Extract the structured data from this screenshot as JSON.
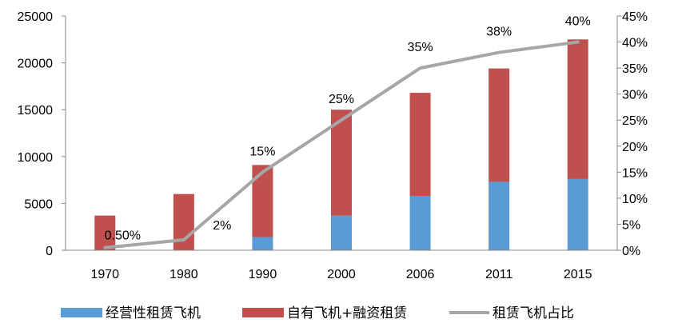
{
  "chart_data": {
    "type": "bar",
    "stacked": true,
    "categories": [
      "1970",
      "1980",
      "1990",
      "2000",
      "2006",
      "2011",
      "2015"
    ],
    "series": [
      {
        "name": "经营性租赁飞机",
        "kind": "bar",
        "axis": "left",
        "color": "#5b9bd5",
        "values": [
          0,
          0,
          1400,
          3700,
          5800,
          7300,
          7600
        ]
      },
      {
        "name": "自有飞机+融资租赁",
        "kind": "bar",
        "axis": "left",
        "color": "#c0504d",
        "values": [
          3700,
          6000,
          7700,
          11300,
          11000,
          12100,
          14900
        ]
      },
      {
        "name": "租赁飞机占比",
        "kind": "line",
        "axis": "right",
        "color": "#a6a6a6",
        "values": [
          0.5,
          2,
          15,
          25,
          35,
          38,
          40
        ],
        "data_labels": [
          "0.50%",
          "2%",
          "15%",
          "25%",
          "35%",
          "38%",
          "40%"
        ]
      }
    ],
    "left_axis": {
      "ylim": [
        0,
        25000
      ],
      "ticks": [
        "0",
        "5000",
        "10000",
        "15000",
        "20000",
        "25000"
      ]
    },
    "right_axis": {
      "ylim": [
        0,
        45
      ],
      "ticks": [
        "0%",
        "5%",
        "10%",
        "15%",
        "20%",
        "25%",
        "30%",
        "35%",
        "40%",
        "45%"
      ]
    },
    "grid": false,
    "legend_position": "bottom"
  }
}
